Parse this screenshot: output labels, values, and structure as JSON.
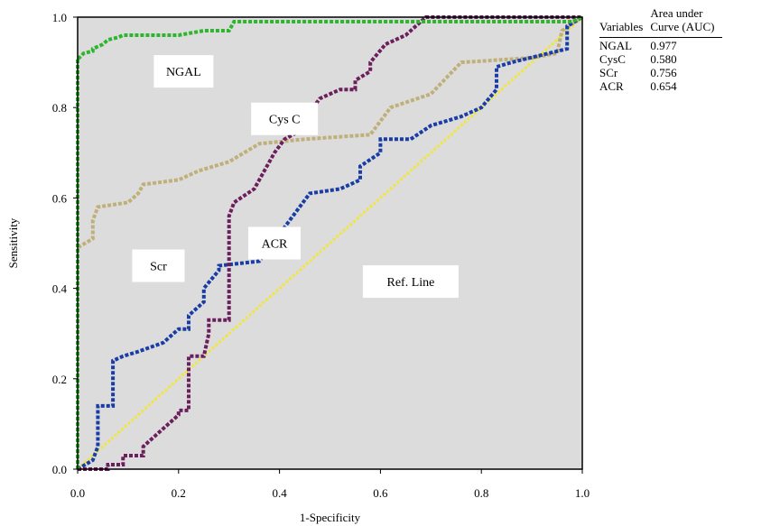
{
  "chart_data": {
    "type": "line",
    "title": "",
    "xlabel": "1-Specificity",
    "ylabel": "Sensitivity",
    "xlim": [
      0,
      1
    ],
    "ylim": [
      0,
      1
    ],
    "x_ticks": [
      "0.0",
      "0.2",
      "0.4",
      "0.6",
      "0.8",
      "1.0"
    ],
    "y_ticks": [
      "0.0",
      "0.2",
      "0.4",
      "0.6",
      "0.8",
      "1.0"
    ],
    "background": "#dcdcdc",
    "grid": false,
    "series": [
      {
        "name": "NGAL",
        "color": "#2db52d",
        "x": [
          0,
          0,
          0.003,
          0.012,
          0.012,
          0.03,
          0.03,
          0.05,
          0.06,
          0.08,
          0.09,
          0.2,
          0.25,
          0.3,
          0.31,
          0.55,
          0.7,
          0.98,
          1.0
        ],
        "y": [
          0,
          0.91,
          0.91,
          0.92,
          0.92,
          0.925,
          0.93,
          0.94,
          0.95,
          0.955,
          0.96,
          0.96,
          0.97,
          0.97,
          0.99,
          0.99,
          0.99,
          0.99,
          1.0
        ]
      },
      {
        "name": "Cys C",
        "color": "#6b1f5c",
        "x": [
          0,
          0.06,
          0.06,
          0.09,
          0.09,
          0.13,
          0.13,
          0.16,
          0.2,
          0.2,
          0.22,
          0.22,
          0.25,
          0.26,
          0.26,
          0.3,
          0.3,
          0.31,
          0.35,
          0.39,
          0.41,
          0.46,
          0.46,
          0.48,
          0.52,
          0.55,
          0.55,
          0.58,
          0.58,
          0.61,
          0.65,
          0.69,
          1.0
        ],
        "y": [
          0,
          0,
          0.01,
          0.01,
          0.03,
          0.03,
          0.05,
          0.08,
          0.12,
          0.13,
          0.13,
          0.25,
          0.25,
          0.3,
          0.33,
          0.33,
          0.56,
          0.59,
          0.62,
          0.7,
          0.73,
          0.76,
          0.79,
          0.82,
          0.84,
          0.84,
          0.86,
          0.88,
          0.9,
          0.94,
          0.96,
          1.0,
          1.0
        ]
      },
      {
        "name": "SCr",
        "color": "#bfb07a",
        "x": [
          0,
          0,
          0.03,
          0.03,
          0.04,
          0.1,
          0.12,
          0.13,
          0.2,
          0.24,
          0.3,
          0.36,
          0.45,
          0.58,
          0.62,
          0.7,
          0.76,
          0.9,
          0.95,
          0.96,
          1.0
        ],
        "y": [
          0,
          0.49,
          0.51,
          0.55,
          0.58,
          0.59,
          0.61,
          0.63,
          0.64,
          0.66,
          0.68,
          0.72,
          0.73,
          0.74,
          0.8,
          0.83,
          0.9,
          0.91,
          0.92,
          0.97,
          1.0
        ],
        "label": "Scr"
      },
      {
        "name": "ACR",
        "color": "#1a3da5",
        "x": [
          0,
          0.03,
          0.04,
          0.04,
          0.07,
          0.07,
          0.09,
          0.12,
          0.17,
          0.2,
          0.22,
          0.22,
          0.25,
          0.25,
          0.28,
          0.28,
          0.36,
          0.46,
          0.46,
          0.52,
          0.56,
          0.56,
          0.6,
          0.6,
          0.66,
          0.7,
          0.76,
          0.8,
          0.83,
          0.83,
          0.86,
          0.97,
          0.97,
          1.0
        ],
        "y": [
          0,
          0.02,
          0.05,
          0.14,
          0.14,
          0.24,
          0.25,
          0.26,
          0.28,
          0.31,
          0.31,
          0.34,
          0.37,
          0.4,
          0.44,
          0.45,
          0.46,
          0.61,
          0.61,
          0.62,
          0.64,
          0.67,
          0.7,
          0.73,
          0.73,
          0.76,
          0.78,
          0.8,
          0.84,
          0.89,
          0.9,
          0.93,
          0.98,
          1.0
        ]
      },
      {
        "name": "Ref. Line",
        "color": "#f0e640",
        "x": [
          0,
          1
        ],
        "y": [
          0,
          1
        ]
      }
    ],
    "annotations": [
      {
        "text": "NGAL",
        "x": 0.21,
        "y": 0.88
      },
      {
        "text": "Cys C",
        "x": 0.41,
        "y": 0.775
      },
      {
        "text": "Scr",
        "x": 0.16,
        "y": 0.45
      },
      {
        "text": "ACR",
        "x": 0.39,
        "y": 0.5
      },
      {
        "text": "Ref. Line",
        "x": 0.66,
        "y": 0.415
      }
    ],
    "table": {
      "headers": [
        "Variables",
        "Area under\nCurve (AUC)"
      ],
      "rows": [
        [
          "NGAL",
          "0.977"
        ],
        [
          "CysC",
          "0.580"
        ],
        [
          "SCr",
          "0.756"
        ],
        [
          "ACR",
          "0.654"
        ]
      ]
    }
  }
}
